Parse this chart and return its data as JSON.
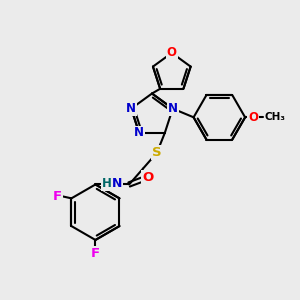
{
  "bg_color": "#ebebeb",
  "bond_color": "#000000",
  "bond_width": 1.5,
  "atom_colors": {
    "N": "#0000cc",
    "O": "#ff0000",
    "S": "#ccaa00",
    "F": "#ee00ee",
    "H": "#006666",
    "C": "#000000"
  },
  "font_size": 8.5,
  "fig_width": 3.0,
  "fig_height": 3.0,
  "dpi": 100
}
